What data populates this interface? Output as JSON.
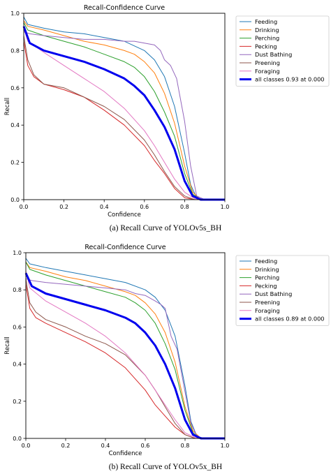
{
  "colors": {
    "Feeding": "#1f77b4",
    "Drinking": "#ff7f0e",
    "Perching": "#2ca02c",
    "Pecking": "#d62728",
    "Dust Bathing": "#9467bd",
    "Preening": "#8c564b",
    "Foraging": "#e377c2",
    "all": "#0000ee"
  },
  "figures": [
    {
      "caption": "(a) Recall Curve of YOLOv5s_BH",
      "chart_data": {
        "type": "line",
        "title": "Recall-Confidence Curve",
        "xlabel": "Confidence",
        "ylabel": "Recall",
        "xlim": [
          0.0,
          1.0
        ],
        "ylim": [
          0.0,
          1.0
        ],
        "xticks": [
          "0.0",
          "0.2",
          "0.4",
          "0.6",
          "0.8",
          "1.0"
        ],
        "yticks": [
          "0.0",
          "0.2",
          "0.4",
          "0.6",
          "0.8",
          "1.0"
        ],
        "grid": false,
        "legend_position": "outside-right",
        "series": [
          {
            "name": "Feeding",
            "x": [
              0,
              0.02,
              0.1,
              0.2,
              0.3,
              0.4,
              0.5,
              0.6,
              0.65,
              0.7,
              0.75,
              0.8,
              0.83,
              0.86,
              0.9,
              1.0
            ],
            "y": [
              0.98,
              0.94,
              0.92,
              0.9,
              0.89,
              0.87,
              0.85,
              0.8,
              0.75,
              0.66,
              0.5,
              0.25,
              0.08,
              0.01,
              0,
              0
            ]
          },
          {
            "name": "Drinking",
            "x": [
              0,
              0.02,
              0.1,
              0.2,
              0.3,
              0.4,
              0.5,
              0.55,
              0.6,
              0.65,
              0.7,
              0.75,
              0.8,
              0.84,
              0.88,
              1.0
            ],
            "y": [
              0.96,
              0.93,
              0.91,
              0.88,
              0.85,
              0.83,
              0.8,
              0.78,
              0.74,
              0.68,
              0.57,
              0.41,
              0.18,
              0.04,
              0,
              0
            ]
          },
          {
            "name": "Perching",
            "x": [
              0,
              0.02,
              0.1,
              0.2,
              0.3,
              0.4,
              0.5,
              0.55,
              0.6,
              0.65,
              0.7,
              0.75,
              0.8,
              0.84,
              0.88,
              1.0
            ],
            "y": [
              0.95,
              0.91,
              0.88,
              0.85,
              0.82,
              0.78,
              0.74,
              0.71,
              0.66,
              0.58,
              0.47,
              0.34,
              0.14,
              0.03,
              0,
              0
            ]
          },
          {
            "name": "Pecking",
            "x": [
              0,
              0.02,
              0.05,
              0.1,
              0.2,
              0.3,
              0.4,
              0.5,
              0.6,
              0.65,
              0.7,
              0.75,
              0.8,
              0.85,
              1.0
            ],
            "y": [
              0.85,
              0.72,
              0.66,
              0.62,
              0.59,
              0.55,
              0.48,
              0.4,
              0.29,
              0.21,
              0.14,
              0.06,
              0.01,
              0,
              0
            ]
          },
          {
            "name": "Dust Bathing",
            "x": [
              0,
              0.03,
              0.1,
              0.2,
              0.3,
              0.4,
              0.5,
              0.55,
              0.6,
              0.65,
              0.68,
              0.7,
              0.73,
              0.76,
              0.8,
              0.83,
              0.86,
              0.9,
              1.0
            ],
            "y": [
              0.9,
              0.89,
              0.88,
              0.87,
              0.86,
              0.86,
              0.85,
              0.85,
              0.84,
              0.83,
              0.8,
              0.75,
              0.72,
              0.65,
              0.42,
              0.18,
              0.02,
              0,
              0
            ]
          },
          {
            "name": "Preening",
            "x": [
              0,
              0.02,
              0.05,
              0.1,
              0.2,
              0.3,
              0.4,
              0.5,
              0.6,
              0.65,
              0.7,
              0.75,
              0.8,
              0.85,
              1.0
            ],
            "y": [
              0.88,
              0.75,
              0.67,
              0.62,
              0.6,
              0.55,
              0.5,
              0.43,
              0.32,
              0.24,
              0.15,
              0.07,
              0.02,
              0,
              0
            ]
          },
          {
            "name": "Foraging",
            "x": [
              0,
              0.02,
              0.1,
              0.2,
              0.3,
              0.4,
              0.5,
              0.6,
              0.65,
              0.7,
              0.75,
              0.8,
              0.85,
              1.0
            ],
            "y": [
              0.92,
              0.85,
              0.79,
              0.72,
              0.65,
              0.58,
              0.49,
              0.37,
              0.29,
              0.2,
              0.11,
              0.04,
              0.005,
              0
            ]
          },
          {
            "name": "all classes 0.93 at 0.000",
            "x": [
              0,
              0.03,
              0.1,
              0.2,
              0.3,
              0.4,
              0.5,
              0.55,
              0.6,
              0.65,
              0.7,
              0.75,
              0.8,
              0.84,
              0.88,
              1.0
            ],
            "y": [
              0.93,
              0.84,
              0.8,
              0.77,
              0.74,
              0.7,
              0.65,
              0.61,
              0.56,
              0.48,
              0.39,
              0.27,
              0.1,
              0.02,
              0,
              0
            ]
          }
        ]
      }
    },
    {
      "caption": "(b) Recall Curve of YOLOv5x_BH",
      "chart_data": {
        "type": "line",
        "title": "Recall-Confidence Curve",
        "xlabel": "Confidence",
        "ylabel": "Recall",
        "xlim": [
          0.0,
          1.0
        ],
        "ylim": [
          0.0,
          1.0
        ],
        "xticks": [
          "0.0",
          "0.2",
          "0.4",
          "0.6",
          "0.8",
          "1.0"
        ],
        "yticks": [
          "0.0",
          "0.2",
          "0.4",
          "0.6",
          "0.8",
          "1.0"
        ],
        "grid": false,
        "legend_position": "outside-right",
        "series": [
          {
            "name": "Feeding",
            "x": [
              0,
              0.02,
              0.1,
              0.2,
              0.3,
              0.4,
              0.5,
              0.6,
              0.65,
              0.7,
              0.75,
              0.8,
              0.83,
              0.86,
              0.9,
              1.0
            ],
            "y": [
              0.97,
              0.94,
              0.92,
              0.9,
              0.88,
              0.86,
              0.84,
              0.8,
              0.76,
              0.69,
              0.55,
              0.28,
              0.09,
              0.01,
              0,
              0
            ]
          },
          {
            "name": "Drinking",
            "x": [
              0,
              0.02,
              0.1,
              0.2,
              0.3,
              0.4,
              0.5,
              0.55,
              0.6,
              0.65,
              0.7,
              0.75,
              0.8,
              0.84,
              0.88,
              1.0
            ],
            "y": [
              0.95,
              0.92,
              0.9,
              0.87,
              0.85,
              0.82,
              0.79,
              0.77,
              0.73,
              0.67,
              0.57,
              0.41,
              0.17,
              0.04,
              0,
              0
            ]
          },
          {
            "name": "Perching",
            "x": [
              0,
              0.02,
              0.1,
              0.2,
              0.3,
              0.4,
              0.5,
              0.55,
              0.6,
              0.65,
              0.7,
              0.75,
              0.8,
              0.84,
              0.88,
              1.0
            ],
            "y": [
              0.95,
              0.91,
              0.88,
              0.85,
              0.82,
              0.79,
              0.76,
              0.73,
              0.69,
              0.62,
              0.51,
              0.37,
              0.15,
              0.03,
              0,
              0
            ]
          },
          {
            "name": "Pecking",
            "x": [
              0,
              0.02,
              0.05,
              0.1,
              0.2,
              0.3,
              0.4,
              0.5,
              0.6,
              0.65,
              0.7,
              0.75,
              0.8,
              0.85,
              1.0
            ],
            "y": [
              0.83,
              0.7,
              0.65,
              0.62,
              0.57,
              0.52,
              0.46,
              0.38,
              0.26,
              0.18,
              0.12,
              0.06,
              0.02,
              0,
              0
            ]
          },
          {
            "name": "Dust Bathing",
            "x": [
              0,
              0.03,
              0.1,
              0.2,
              0.3,
              0.4,
              0.5,
              0.55,
              0.6,
              0.65,
              0.68,
              0.7,
              0.73,
              0.76,
              0.8,
              0.83,
              0.86,
              0.9,
              1.0
            ],
            "y": [
              0.86,
              0.85,
              0.84,
              0.83,
              0.82,
              0.81,
              0.8,
              0.78,
              0.77,
              0.74,
              0.72,
              0.7,
              0.55,
              0.48,
              0.25,
              0.08,
              0.01,
              0,
              0
            ]
          },
          {
            "name": "Preening",
            "x": [
              0,
              0.02,
              0.05,
              0.1,
              0.2,
              0.3,
              0.4,
              0.5,
              0.6,
              0.65,
              0.7,
              0.75,
              0.8,
              0.85,
              1.0
            ],
            "y": [
              0.86,
              0.73,
              0.68,
              0.64,
              0.6,
              0.55,
              0.51,
              0.45,
              0.34,
              0.26,
              0.17,
              0.08,
              0.02,
              0,
              0
            ]
          },
          {
            "name": "Foraging",
            "x": [
              0,
              0.02,
              0.1,
              0.2,
              0.3,
              0.4,
              0.5,
              0.6,
              0.65,
              0.7,
              0.75,
              0.8,
              0.85,
              1.0
            ],
            "y": [
              0.9,
              0.81,
              0.74,
              0.68,
              0.62,
              0.55,
              0.46,
              0.34,
              0.26,
              0.18,
              0.1,
              0.03,
              0.005,
              0
            ]
          },
          {
            "name": "all classes 0.89 at 0.000",
            "x": [
              0,
              0.03,
              0.1,
              0.2,
              0.3,
              0.4,
              0.5,
              0.55,
              0.6,
              0.65,
              0.7,
              0.75,
              0.8,
              0.84,
              0.88,
              1.0
            ],
            "y": [
              0.89,
              0.82,
              0.78,
              0.75,
              0.72,
              0.69,
              0.65,
              0.62,
              0.57,
              0.5,
              0.4,
              0.27,
              0.1,
              0.02,
              0,
              0
            ]
          }
        ]
      }
    }
  ]
}
